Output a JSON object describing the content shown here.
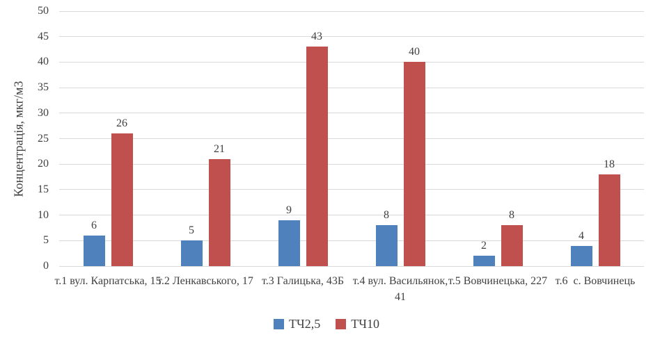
{
  "chart_data": {
    "type": "bar",
    "title": "",
    "xlabel": "",
    "ylabel": "Концентрація, мкг/м3",
    "ylim": [
      0,
      50
    ],
    "ytick_step": 5,
    "grid": true,
    "legend_position": "bottom",
    "categories": [
      "т.1 вул. Карпатська, 15",
      "т.2 Ленкавського, 17",
      "т.3 Галицька, 43Б",
      "т.4 вул. Васильянок, 41",
      "т.5 Вовчинецька, 227",
      "т.6  с. Вовчинець"
    ],
    "series": [
      {
        "name": "ТЧ2,5",
        "color": "#4F81BD",
        "values": [
          6,
          5,
          9,
          8,
          2,
          4
        ]
      },
      {
        "name": "ТЧ10",
        "color": "#C0504D",
        "values": [
          26,
          21,
          43,
          40,
          8,
          18
        ]
      }
    ],
    "colors": {
      "gridline": "#D9D9D9",
      "text": "#404040",
      "background": "#FFFFFF"
    }
  }
}
